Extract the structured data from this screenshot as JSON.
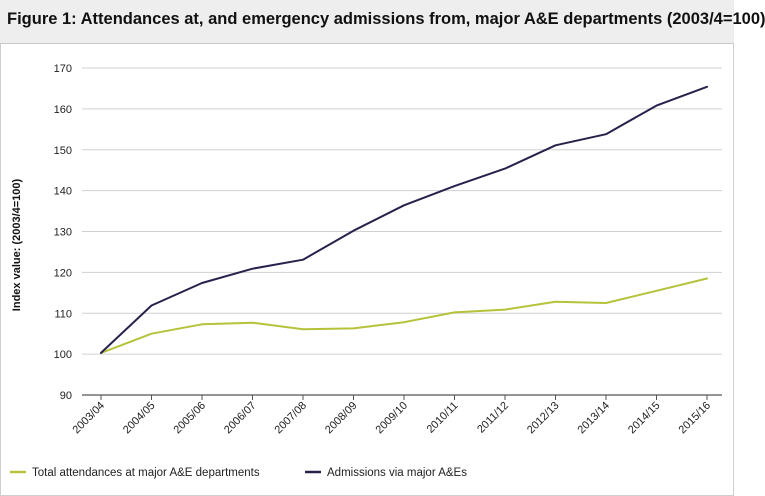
{
  "chart_data": {
    "type": "line",
    "title": "Figure 1: Attendances at, and emergency admissions from, major A&E departments (2003/4=100)",
    "xlabel": "",
    "ylabel": "Index value: (2003/4=100)",
    "ylim": [
      90,
      170
    ],
    "yticks": [
      90,
      100,
      110,
      120,
      130,
      140,
      150,
      160,
      170
    ],
    "grid": true,
    "legend": "bottom",
    "categories": [
      "2003/04",
      "2004/05",
      "2005/06",
      "2006/07",
      "2007/08",
      "2008/09",
      "2009/10",
      "2010/11",
      "2011/12",
      "2012/13",
      "2013/14",
      "2014/15",
      "2015/16"
    ],
    "series": [
      {
        "name": "Total attendances at major A&E departments",
        "color": "#b5c23a",
        "values": [
          100.3,
          105.0,
          107.3,
          107.7,
          106.1,
          106.3,
          107.8,
          110.2,
          110.9,
          112.8,
          112.5,
          115.5,
          118.5
        ]
      },
      {
        "name": "Admissions via major A&Es",
        "color": "#27224c",
        "values": [
          100.3,
          111.9,
          117.4,
          120.9,
          123.1,
          130.2,
          136.4,
          141.1,
          145.4,
          151.1,
          153.8,
          160.8,
          165.4
        ]
      }
    ]
  }
}
